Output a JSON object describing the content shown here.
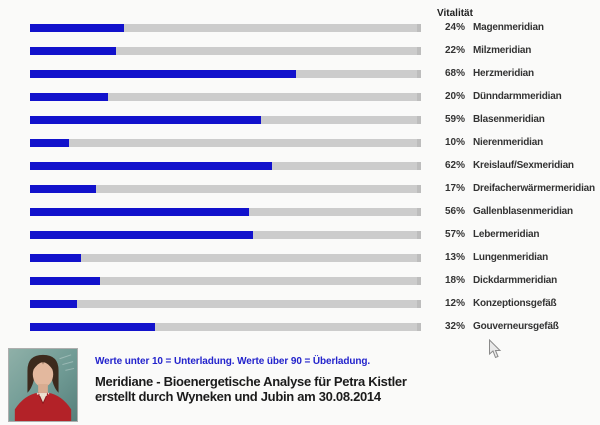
{
  "chart_data": {
    "type": "bar",
    "orientation": "horizontal",
    "title": "Vitalität",
    "unit": "%",
    "xlim": [
      0,
      100
    ],
    "grid": false,
    "bar_color": "#1212cc",
    "track_color": "#cccccc",
    "categories": [
      "Magenmeridian",
      "Milzmeridian",
      "Herzmeridian",
      "Dünndarmmeridian",
      "Blasenmeridian",
      "Nierenmeridian",
      "Kreislauf/Sexmeridian",
      "Dreifacherwärmermeridian",
      "Gallenblasenmeridian",
      "Lebermeridian",
      "Lungenmeridian",
      "Dickdarmmeridian",
      "Konzeptionsgefäß",
      "Gouverneursgefäß"
    ],
    "values": [
      24,
      22,
      68,
      20,
      59,
      10,
      62,
      17,
      56,
      57,
      13,
      18,
      12,
      32
    ]
  },
  "legend_note": "Werte unter 10 = Unterladung. Werte über 90 = Überladung.",
  "footer": {
    "title_line1": "Meridiane - Bioenergetische Analyse für Petra Kistler",
    "title_line2": "erstellt durch Wyneken und Jubin am 30.08.2014"
  },
  "colors": {
    "note_text": "#2323cc",
    "title_text": "#1b1b1b",
    "label_text": "#333333",
    "photo_background": "#6f9a94",
    "photo_jacket": "#b32228",
    "page_background": "#fafaf9"
  }
}
